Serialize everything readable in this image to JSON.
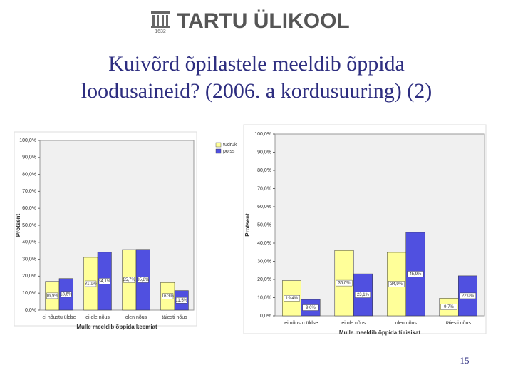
{
  "header": {
    "logo": "TARTU ÜLIKOOL",
    "year": "1632"
  },
  "title_line1": "Kuivõrd õpilastele meeldib õppida",
  "title_line2": "loodusaineid? (2006. a kordusuuring) (2)",
  "page_number": "15",
  "chart_data": [
    {
      "type": "bar",
      "x_label": "Mulle meeldib õppida keemiat",
      "y_label": "Protsent",
      "categories": [
        "ei nõustu üldse",
        "ei ole nõus",
        "olen nõus",
        "täiesti nõus"
      ],
      "series": [
        {
          "name": "tüdruk",
          "color": "#ffff99",
          "values": [
            16.9,
            31.1,
            35.7,
            16.3
          ],
          "value_labels": [
            "16,9%",
            "31,1%",
            "35,7%",
            "16,3%"
          ]
        },
        {
          "name": "poiss",
          "color": "#5050e0",
          "values": [
            18.6,
            34.1,
            35.8,
            11.5
          ],
          "value_labels": [
            "18,6%",
            "34,1%",
            "35,8%",
            "11,5%"
          ]
        }
      ],
      "legend": "right",
      "ylim": [
        0,
        100
      ],
      "yticks": [
        {
          "value": 0,
          "label": "0,0%"
        },
        {
          "value": 10,
          "label": "10,0%"
        },
        {
          "value": 20,
          "label": "20,0%"
        },
        {
          "value": 30,
          "label": "30,0%"
        },
        {
          "value": 40,
          "label": "40,0%"
        },
        {
          "value": 50,
          "label": "50,0%"
        },
        {
          "value": 60,
          "label": "60,0%"
        },
        {
          "value": 70,
          "label": "70,0%"
        },
        {
          "value": 80,
          "label": "80,0%"
        },
        {
          "value": 90,
          "label": "90,0%"
        },
        {
          "value": 100,
          "label": "100,0%"
        }
      ]
    },
    {
      "type": "bar",
      "x_label": "Mulle meeldib õppida füüsikat",
      "y_label": "Protsent",
      "categories": [
        "ei nõustu üldse",
        "ei ole nõus",
        "olen nõus",
        "täiesti nõus"
      ],
      "series": [
        {
          "color": "#ffff99",
          "values": [
            19.4,
            36.0,
            34.9,
            9.7
          ],
          "value_labels": [
            "19,4%",
            "36,0%",
            "34,9%",
            "9,7%"
          ]
        },
        {
          "color": "#5050e0",
          "values": [
            9.0,
            23.1,
            45.9,
            22.0
          ],
          "value_labels": [
            "9,0%",
            "23,1%",
            "45,9%",
            "22,0%"
          ]
        }
      ],
      "ylim": [
        0,
        100
      ],
      "yticks": [
        {
          "value": 0,
          "label": "0,0%"
        },
        {
          "value": 10,
          "label": "10,0%"
        },
        {
          "value": 20,
          "label": "20,0%"
        },
        {
          "value": 30,
          "label": "30,0%"
        },
        {
          "value": 40,
          "label": "40,0%"
        },
        {
          "value": 50,
          "label": "50,0%"
        },
        {
          "value": 60,
          "label": "60,0%"
        },
        {
          "value": 70,
          "label": "70,0%"
        },
        {
          "value": 80,
          "label": "80,0%"
        },
        {
          "value": 90,
          "label": "90,0%"
        },
        {
          "value": 100,
          "label": "100,0%"
        }
      ]
    }
  ]
}
